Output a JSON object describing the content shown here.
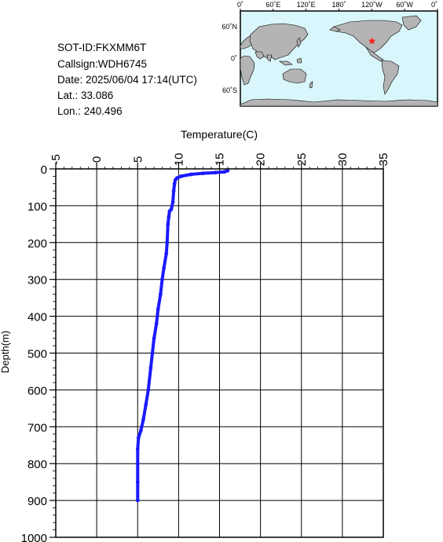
{
  "info": {
    "sot_id": "SOT-ID:FKXMM6T",
    "callsign": "Callsign:WDH6745",
    "date": "Date:  2025/06/04 17:14(UTC)",
    "lat": "Lat.:   33.086",
    "lon": "Lon.:  240.496"
  },
  "map": {
    "top_labels": [
      "0˚",
      "60˚E",
      "120˚E",
      "180˚",
      "120˚W",
      "60˚W",
      "0˚"
    ],
    "lat_labels": [
      "60˚N",
      "0˚",
      "60˚S"
    ],
    "ocean_color": "#d8f6fb",
    "land_color": "#b4b4b4",
    "marker_color": "#ff2020",
    "marker": {
      "lat": 33.086,
      "lon": 240.496
    }
  },
  "chart_data": {
    "type": "line",
    "xlabel": "Temperature(C)",
    "ylabel": "Depth(m)",
    "xlim": [
      -5,
      35
    ],
    "ylim": [
      0,
      1000
    ],
    "y_inverted": true,
    "x_axis_position": "top",
    "x_ticks": [
      -5,
      0,
      5,
      10,
      15,
      20,
      25,
      30,
      35
    ],
    "y_ticks": [
      0,
      100,
      200,
      300,
      400,
      500,
      600,
      700,
      800,
      900,
      1000
    ],
    "grid": true,
    "series_color": "#1a1aff",
    "series": [
      {
        "temperature": [
          16.0,
          15.6,
          14.5,
          13.0,
          11.5,
          10.3,
          9.8,
          9.6,
          9.5,
          9.4,
          9.3,
          9.1,
          8.9,
          8.8,
          8.7,
          8.6,
          8.5,
          8.2,
          8.0,
          7.8,
          7.5,
          7.3,
          7.0,
          6.8,
          6.6,
          6.3,
          6.0,
          5.7,
          5.4,
          5.1,
          5.0,
          5.0,
          5.0,
          5.0
        ],
        "depth": [
          5,
          8,
          10,
          12,
          15,
          20,
          25,
          30,
          40,
          60,
          90,
          110,
          115,
          130,
          150,
          200,
          230,
          270,
          300,
          340,
          380,
          420,
          460,
          500,
          540,
          600,
          640,
          680,
          710,
          730,
          760,
          800,
          850,
          900
        ]
      }
    ]
  }
}
